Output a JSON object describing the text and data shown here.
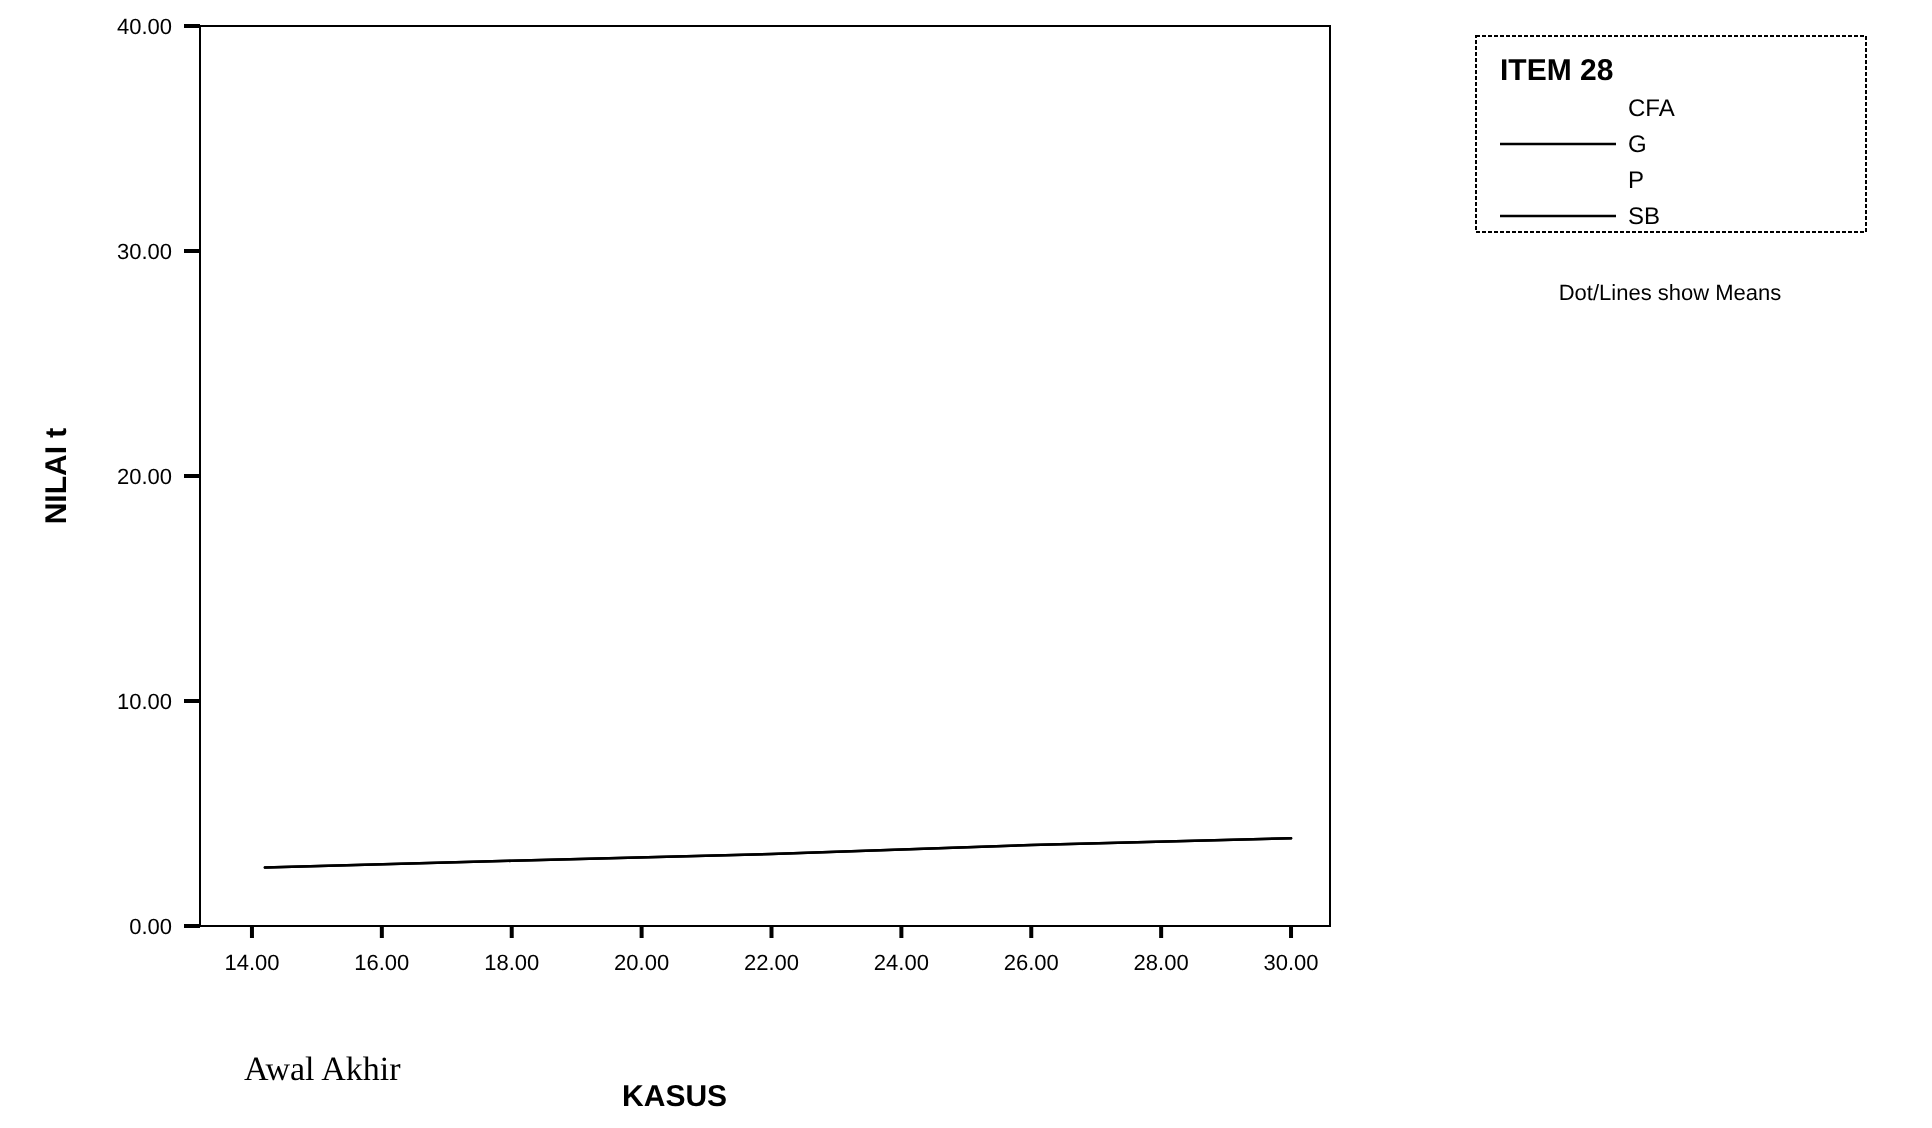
{
  "chart_data": {
    "type": "line",
    "xlabel": "KASUS",
    "ylabel": "NILAI t",
    "legend_title": "ITEM 28",
    "legend": "top right",
    "grid": false,
    "marker": "none",
    "line_style": "solid",
    "x": [
      14.2,
      18,
      22,
      26,
      30
    ],
    "xlim": [
      13.2,
      30.6
    ],
    "ylim": [
      0,
      40
    ],
    "xticks": [
      {
        "value": 14,
        "label": "14.00"
      },
      {
        "value": 16,
        "label": "16.00"
      },
      {
        "value": 18,
        "label": "18.00"
      },
      {
        "value": 20,
        "label": "20.00"
      },
      {
        "value": 22,
        "label": "22.00"
      },
      {
        "value": 24,
        "label": "24.00"
      },
      {
        "value": 26,
        "label": "26.00"
      },
      {
        "value": 28,
        "label": "28.00"
      },
      {
        "value": 30,
        "label": "30.00"
      }
    ],
    "yticks": [
      {
        "value": 0,
        "label": "0.00"
      },
      {
        "value": 10,
        "label": "10.00"
      },
      {
        "value": 20,
        "label": "20.00"
      },
      {
        "value": 30,
        "label": "30.00"
      },
      {
        "value": 40,
        "label": "40.00"
      }
    ],
    "series": [
      {
        "name": "CFA",
        "values": [
          null,
          null,
          null,
          null,
          null
        ]
      },
      {
        "name": "G",
        "color": "#000000",
        "values": [
          2.6,
          2.9,
          3.2,
          3.6,
          3.9
        ]
      },
      {
        "name": "P",
        "values": [
          null,
          null,
          null,
          null,
          null
        ]
      },
      {
        "name": "SB",
        "color": "#000000",
        "values": [
          2.6,
          2.9,
          3.2,
          3.6,
          3.9
        ]
      }
    ],
    "annotations": [
      "Dot/Lines show Means",
      "Awal Akhir"
    ]
  }
}
